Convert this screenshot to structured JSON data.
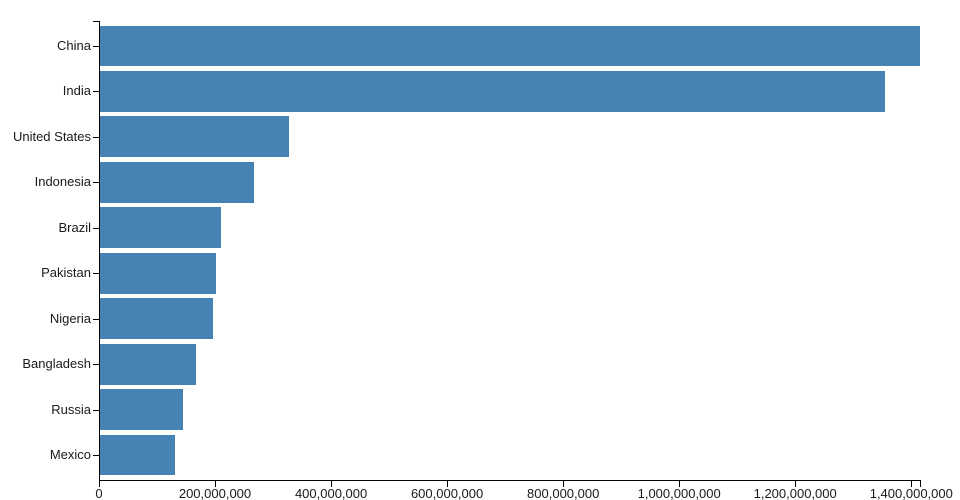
{
  "page": {
    "background_color": "#ffffff"
  },
  "chart_data": {
    "type": "bar",
    "orientation": "horizontal",
    "title": "",
    "xlabel": "",
    "ylabel": "",
    "categories": [
      "China",
      "India",
      "United States",
      "Indonesia",
      "Brazil",
      "Pakistan",
      "Nigeria",
      "Bangladesh",
      "Russia",
      "Mexico"
    ],
    "values": [
      1415045928,
      1354051854,
      326766748,
      266794980,
      210867954,
      200813818,
      195875237,
      166368149,
      143964709,
      130759074
    ],
    "xlim": [
      0,
      1415045928
    ],
    "x_ticks": [
      0,
      200000000,
      400000000,
      600000000,
      800000000,
      1000000000,
      1200000000,
      1400000000
    ],
    "x_tick_labels": [
      "0",
      "200,000,000",
      "400,000,000",
      "600,000,000",
      "800,000,000",
      "1,000,000,000",
      "1,200,000,000",
      "1,400,000,000"
    ],
    "grid": false,
    "legend": "none",
    "bar_color": "#4682b4",
    "axis_color": "#000000",
    "text_color": "#1a1a1a"
  }
}
